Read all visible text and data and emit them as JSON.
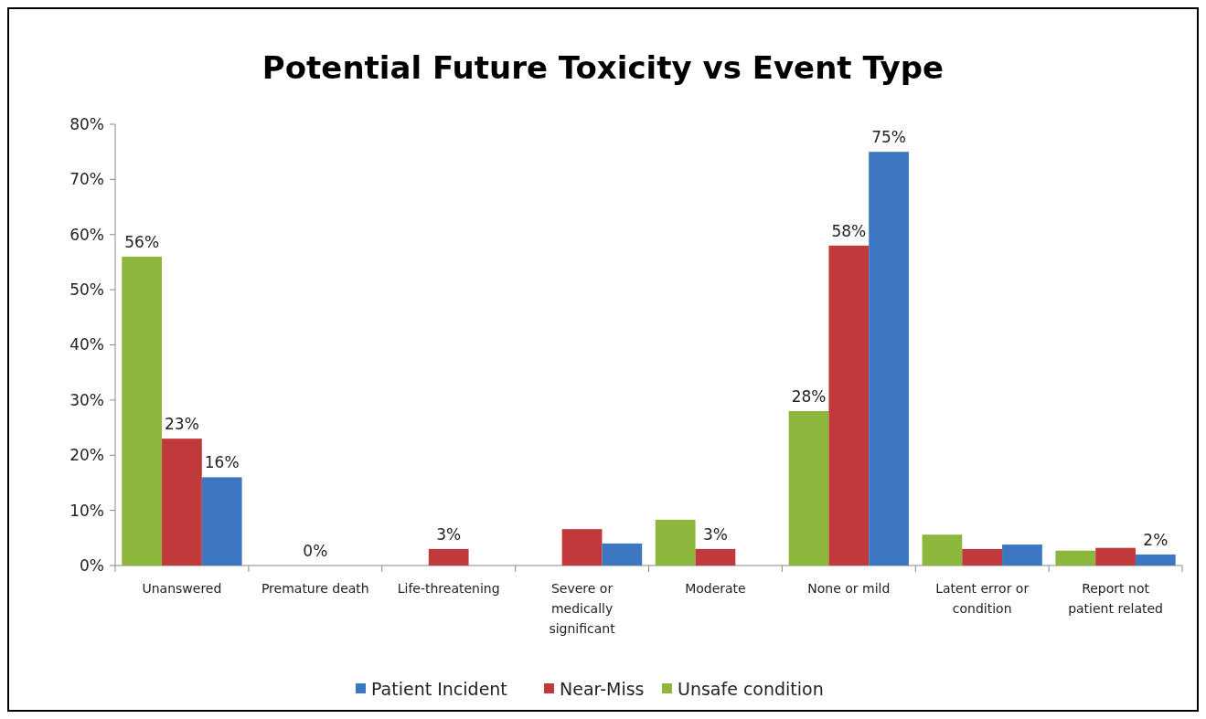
{
  "chart_data": {
    "type": "bar",
    "title": "Potential Future Toxicity vs Event Type",
    "categories": [
      "Unanswered",
      "Premature death",
      "Life-threatening",
      "Severe or medically significant",
      "Moderate",
      "None or mild",
      "Latent error or condition",
      "Report not patient related"
    ],
    "series": [
      {
        "name": "Unsafe condition",
        "color": "#8db63c",
        "values": [
          56,
          0,
          0,
          0,
          8.3,
          28,
          5.6,
          2.7
        ],
        "value_labels": [
          "56%",
          null,
          null,
          null,
          null,
          "28%",
          null,
          null
        ]
      },
      {
        "name": "Near-Miss",
        "color": "#c0393b",
        "values": [
          23,
          0,
          3,
          6.6,
          3,
          58,
          3,
          3.2
        ],
        "value_labels": [
          "23%",
          "0%",
          "3%",
          null,
          "3%",
          "58%",
          null,
          null
        ]
      },
      {
        "name": "Patient Incident",
        "color": "#3d77c1",
        "values": [
          16,
          0,
          0,
          4,
          0,
          75,
          3.8,
          2
        ],
        "value_labels": [
          "16%",
          null,
          null,
          null,
          null,
          "75%",
          null,
          "2%"
        ]
      }
    ],
    "ylim": [
      0,
      80
    ],
    "yticks": [
      {
        "value": 0,
        "label": "0%"
      },
      {
        "value": 10,
        "label": "10%"
      },
      {
        "value": 20,
        "label": "20%"
      },
      {
        "value": 30,
        "label": "30%"
      },
      {
        "value": 40,
        "label": "40%"
      },
      {
        "value": 50,
        "label": "50%"
      },
      {
        "value": 60,
        "label": "60%"
      },
      {
        "value": 70,
        "label": "70%"
      },
      {
        "value": 80,
        "label": "80%"
      }
    ],
    "grid": false,
    "legend": "bottom"
  }
}
